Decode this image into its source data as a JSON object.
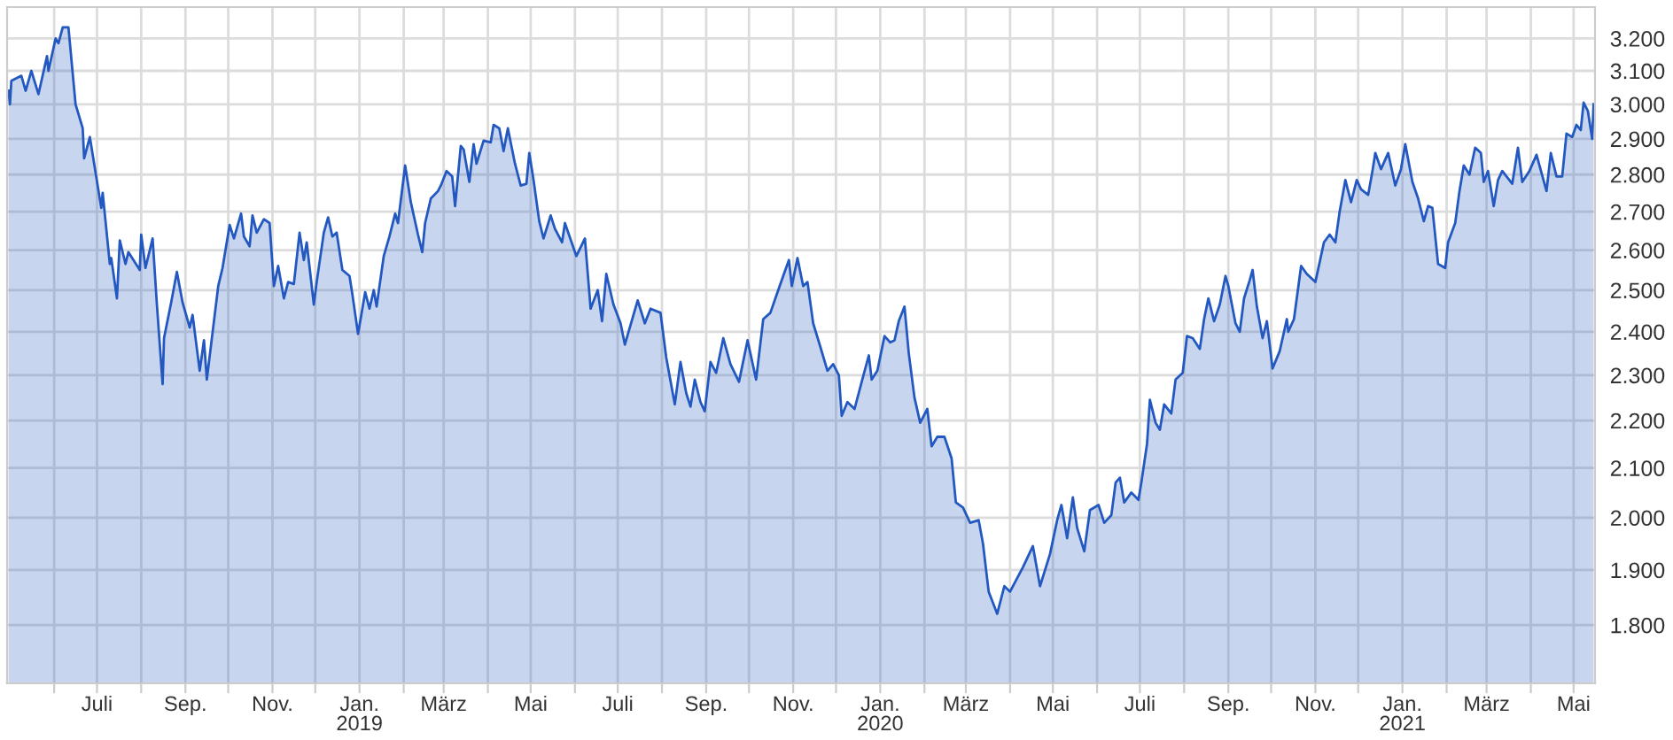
{
  "chart_data": {
    "type": "area",
    "log": "y",
    "grid": true,
    "xlim": [
      "2018-04-29",
      "2021-05-16"
    ],
    "ylim": [
      1700,
      3300
    ],
    "yticks": [
      {
        "value": 1800,
        "label": "1.800"
      },
      {
        "value": 1900,
        "label": "1.900"
      },
      {
        "value": 2000,
        "label": "2.000"
      },
      {
        "value": 2100,
        "label": "2.100"
      },
      {
        "value": 2200,
        "label": "2.200"
      },
      {
        "value": 2300,
        "label": "2.300"
      },
      {
        "value": 2400,
        "label": "2.400"
      },
      {
        "value": 2500,
        "label": "2.500"
      },
      {
        "value": 2600,
        "label": "2.600"
      },
      {
        "value": 2700,
        "label": "2.700"
      },
      {
        "value": 2800,
        "label": "2.800"
      },
      {
        "value": 2900,
        "label": "2.900"
      },
      {
        "value": 3000,
        "label": "3.000"
      },
      {
        "value": 3100,
        "label": "3.100"
      },
      {
        "value": 3200,
        "label": "3.200"
      }
    ],
    "xticks": [
      {
        "value": "2018-06-01",
        "label": null
      },
      {
        "value": "2018-07-01",
        "label": "Juli"
      },
      {
        "value": "2018-08-01",
        "label": null
      },
      {
        "value": "2018-09-01",
        "label": "Sep."
      },
      {
        "value": "2018-10-01",
        "label": null
      },
      {
        "value": "2018-11-01",
        "label": "Nov."
      },
      {
        "value": "2018-12-01",
        "label": null
      },
      {
        "value": "2019-01-01",
        "label": "Jan.\n2019"
      },
      {
        "value": "2019-02-01",
        "label": null
      },
      {
        "value": "2019-03-01",
        "label": "März"
      },
      {
        "value": "2019-04-01",
        "label": null
      },
      {
        "value": "2019-05-01",
        "label": "Mai"
      },
      {
        "value": "2019-06-01",
        "label": null
      },
      {
        "value": "2019-07-01",
        "label": "Juli"
      },
      {
        "value": "2019-08-01",
        "label": null
      },
      {
        "value": "2019-09-01",
        "label": "Sep."
      },
      {
        "value": "2019-10-01",
        "label": null
      },
      {
        "value": "2019-11-01",
        "label": "Nov."
      },
      {
        "value": "2019-12-01",
        "label": null
      },
      {
        "value": "2020-01-01",
        "label": "Jan.\n2020"
      },
      {
        "value": "2020-02-01",
        "label": null
      },
      {
        "value": "2020-03-01",
        "label": "März"
      },
      {
        "value": "2020-04-01",
        "label": null
      },
      {
        "value": "2020-05-01",
        "label": "Mai"
      },
      {
        "value": "2020-06-01",
        "label": null
      },
      {
        "value": "2020-07-01",
        "label": "Juli"
      },
      {
        "value": "2020-08-01",
        "label": null
      },
      {
        "value": "2020-09-01",
        "label": "Sep."
      },
      {
        "value": "2020-10-01",
        "label": null
      },
      {
        "value": "2020-11-01",
        "label": "Nov."
      },
      {
        "value": "2020-12-01",
        "label": null
      },
      {
        "value": "2021-01-01",
        "label": "Jan.\n2021"
      },
      {
        "value": "2021-02-01",
        "label": null
      },
      {
        "value": "2021-03-01",
        "label": "März"
      },
      {
        "value": "2021-04-01",
        "label": null
      },
      {
        "value": "2021-05-01",
        "label": "Mai"
      }
    ],
    "series": [
      {
        "color": "#2258c0",
        "x": [
          "2018-04-30",
          "2018-05-01",
          "2018-05-02",
          "2018-05-09",
          "2018-05-12",
          "2018-05-16",
          "2018-05-21",
          "2018-05-27",
          "2018-05-28",
          "2018-06-02",
          "2018-06-04",
          "2018-06-07",
          "2018-06-11",
          "2018-06-16",
          "2018-06-21",
          "2018-06-22",
          "2018-06-26",
          "2018-07-04",
          "2018-07-05",
          "2018-07-10",
          "2018-07-11",
          "2018-07-15",
          "2018-07-17",
          "2018-07-21",
          "2018-07-23",
          "2018-07-31",
          "2018-08-01",
          "2018-08-04",
          "2018-08-09",
          "2018-08-12",
          "2018-08-16",
          "2018-08-17",
          "2018-08-22",
          "2018-08-26",
          "2018-08-30",
          "2018-09-04",
          "2018-09-06",
          "2018-09-11",
          "2018-09-14",
          "2018-09-16",
          "2018-09-24",
          "2018-09-27",
          "2018-10-02",
          "2018-10-05",
          "2018-10-10",
          "2018-10-12",
          "2018-10-16",
          "2018-10-18",
          "2018-10-21",
          "2018-10-26",
          "2018-10-30",
          "2018-11-02",
          "2018-11-05",
          "2018-11-09",
          "2018-11-12",
          "2018-11-16",
          "2018-11-20",
          "2018-11-23",
          "2018-11-25",
          "2018-11-30",
          "2018-12-02",
          "2018-12-07",
          "2018-12-10",
          "2018-12-13",
          "2018-12-16",
          "2018-12-20",
          "2018-12-25",
          "2018-12-27",
          "2018-12-31",
          "2019-01-05",
          "2019-01-08",
          "2019-01-11",
          "2019-01-13",
          "2019-01-18",
          "2019-01-22",
          "2019-01-26",
          "2019-01-28",
          "2019-02-02",
          "2019-02-06",
          "2019-02-11",
          "2019-02-14",
          "2019-02-16",
          "2019-02-20",
          "2019-02-25",
          "2019-02-27",
          "2019-03-03",
          "2019-03-07",
          "2019-03-09",
          "2019-03-13",
          "2019-03-15",
          "2019-03-19",
          "2019-03-22",
          "2019-03-24",
          "2019-03-29",
          "2019-04-03",
          "2019-04-05",
          "2019-04-09",
          "2019-04-12",
          "2019-04-15",
          "2019-04-20",
          "2019-04-24",
          "2019-04-28",
          "2019-04-30",
          "2019-05-03",
          "2019-05-07",
          "2019-05-10",
          "2019-05-15",
          "2019-05-18",
          "2019-05-23",
          "2019-05-25",
          "2019-06-02",
          "2019-06-08",
          "2019-06-12",
          "2019-06-17",
          "2019-06-20",
          "2019-06-23",
          "2019-06-28",
          "2019-07-03",
          "2019-07-06",
          "2019-07-15",
          "2019-07-20",
          "2019-07-24",
          "2019-07-31",
          "2019-08-04",
          "2019-08-10",
          "2019-08-14",
          "2019-08-18",
          "2019-08-21",
          "2019-08-24",
          "2019-08-28",
          "2019-08-31",
          "2019-09-04",
          "2019-09-08",
          "2019-09-13",
          "2019-09-18",
          "2019-09-24",
          "2019-09-30",
          "2019-10-06",
          "2019-10-11",
          "2019-10-16",
          "2019-10-20",
          "2019-10-25",
          "2019-10-29",
          "2019-10-31",
          "2019-11-04",
          "2019-11-08",
          "2019-11-11",
          "2019-11-15",
          "2019-11-20",
          "2019-11-25",
          "2019-11-29",
          "2019-12-03",
          "2019-12-05",
          "2019-12-09",
          "2019-12-14",
          "2019-12-19",
          "2019-12-24",
          "2019-12-26",
          "2019-12-30",
          "2020-01-04",
          "2020-01-08",
          "2020-01-11",
          "2020-01-14",
          "2020-01-18",
          "2020-01-21",
          "2020-01-25",
          "2020-01-29",
          "2020-02-03",
          "2020-02-06",
          "2020-02-10",
          "2020-02-15",
          "2020-02-20",
          "2020-02-23",
          "2020-02-28",
          "2020-03-04",
          "2020-03-10",
          "2020-03-13",
          "2020-03-17",
          "2020-03-23",
          "2020-03-28",
          "2020-04-01",
          "2020-04-05",
          "2020-04-10",
          "2020-04-17",
          "2020-04-22",
          "2020-04-29",
          "2020-05-04",
          "2020-05-07",
          "2020-05-11",
          "2020-05-15",
          "2020-05-18",
          "2020-05-23",
          "2020-05-27",
          "2020-06-02",
          "2020-06-06",
          "2020-06-11",
          "2020-06-14",
          "2020-06-17",
          "2020-06-20",
          "2020-06-25",
          "2020-06-30",
          "2020-07-02",
          "2020-07-06",
          "2020-07-08",
          "2020-07-12",
          "2020-07-15",
          "2020-07-18",
          "2020-07-23",
          "2020-07-26",
          "2020-07-31",
          "2020-08-03",
          "2020-08-07",
          "2020-08-12",
          "2020-08-15",
          "2020-08-18",
          "2020-08-22",
          "2020-08-26",
          "2020-08-30",
          "2020-09-01",
          "2020-09-06",
          "2020-09-09",
          "2020-09-12",
          "2020-09-16",
          "2020-09-18",
          "2020-09-21",
          "2020-09-25",
          "2020-09-28",
          "2020-10-02",
          "2020-10-07",
          "2020-10-12",
          "2020-10-13",
          "2020-10-17",
          "2020-10-22",
          "2020-10-26",
          "2020-11-01",
          "2020-11-07",
          "2020-11-11",
          "2020-11-15",
          "2020-11-18",
          "2020-11-22",
          "2020-11-26",
          "2020-11-30",
          "2020-12-03",
          "2020-12-08",
          "2020-12-11",
          "2020-12-13",
          "2020-12-17",
          "2020-12-22",
          "2020-12-27",
          "2020-12-31",
          "2021-01-03",
          "2021-01-08",
          "2021-01-12",
          "2021-01-16",
          "2021-01-19",
          "2021-01-22",
          "2021-01-26",
          "2021-01-31",
          "2021-02-02",
          "2021-02-07",
          "2021-02-10",
          "2021-02-13",
          "2021-02-17",
          "2021-02-21",
          "2021-02-25",
          "2021-02-27",
          "2021-03-02",
          "2021-03-06",
          "2021-03-09",
          "2021-03-12",
          "2021-03-15",
          "2021-03-19",
          "2021-03-23",
          "2021-03-26",
          "2021-03-31",
          "2021-04-05",
          "2021-04-12",
          "2021-04-15",
          "2021-04-19",
          "2021-04-23",
          "2021-04-26",
          "2021-04-30",
          "2021-05-03",
          "2021-05-06",
          "2021-05-08",
          "2021-05-11",
          "2021-05-14",
          "2021-05-15"
        ],
        "values": [
          3040,
          3000,
          3070,
          3085,
          3040,
          3100,
          3030,
          3145,
          3100,
          3200,
          3185,
          3235,
          3235,
          3000,
          2930,
          2845,
          2905,
          2710,
          2750,
          2565,
          2580,
          2480,
          2625,
          2565,
          2595,
          2550,
          2640,
          2555,
          2630,
          2465,
          2280,
          2385,
          2470,
          2545,
          2470,
          2410,
          2440,
          2310,
          2380,
          2290,
          2510,
          2555,
          2665,
          2630,
          2695,
          2635,
          2610,
          2690,
          2645,
          2680,
          2670,
          2510,
          2560,
          2480,
          2520,
          2515,
          2645,
          2575,
          2620,
          2465,
          2520,
          2645,
          2685,
          2635,
          2645,
          2550,
          2535,
          2490,
          2395,
          2495,
          2455,
          2500,
          2460,
          2585,
          2635,
          2695,
          2670,
          2825,
          2725,
          2640,
          2595,
          2670,
          2735,
          2755,
          2770,
          2810,
          2795,
          2715,
          2880,
          2870,
          2780,
          2885,
          2830,
          2895,
          2890,
          2940,
          2930,
          2865,
          2930,
          2830,
          2770,
          2775,
          2860,
          2785,
          2675,
          2630,
          2690,
          2655,
          2620,
          2670,
          2585,
          2630,
          2455,
          2500,
          2425,
          2540,
          2465,
          2420,
          2370,
          2475,
          2420,
          2455,
          2445,
          2340,
          2235,
          2330,
          2260,
          2230,
          2290,
          2240,
          2220,
          2330,
          2305,
          2385,
          2325,
          2285,
          2380,
          2290,
          2430,
          2445,
          2485,
          2535,
          2575,
          2510,
          2580,
          2510,
          2520,
          2420,
          2365,
          2310,
          2325,
          2300,
          2210,
          2240,
          2225,
          2285,
          2345,
          2290,
          2310,
          2390,
          2375,
          2380,
          2425,
          2460,
          2350,
          2250,
          2195,
          2225,
          2145,
          2165,
          2165,
          2120,
          2030,
          2020,
          1990,
          1995,
          1950,
          1860,
          1820,
          1870,
          1860,
          1880,
          1905,
          1945,
          1870,
          1930,
          1995,
          2025,
          1960,
          2040,
          1980,
          1935,
          2015,
          2025,
          1990,
          2005,
          2070,
          2080,
          2030,
          2050,
          2035,
          2070,
          2150,
          2245,
          2195,
          2180,
          2235,
          2215,
          2290,
          2305,
          2390,
          2385,
          2360,
          2430,
          2480,
          2425,
          2465,
          2535,
          2510,
          2420,
          2400,
          2480,
          2525,
          2550,
          2460,
          2385,
          2425,
          2315,
          2355,
          2430,
          2400,
          2430,
          2560,
          2540,
          2520,
          2620,
          2640,
          2620,
          2700,
          2785,
          2725,
          2785,
          2760,
          2745,
          2810,
          2860,
          2815,
          2860,
          2770,
          2815,
          2885,
          2780,
          2735,
          2675,
          2715,
          2710,
          2565,
          2555,
          2620,
          2670,
          2755,
          2825,
          2800,
          2875,
          2860,
          2780,
          2810,
          2715,
          2785,
          2810,
          2795,
          2775,
          2875,
          2780,
          2810,
          2855,
          2755,
          2860,
          2795,
          2795,
          2915,
          2905,
          2940,
          2925,
          3005,
          2980,
          2900,
          3000
        ]
      }
    ]
  }
}
